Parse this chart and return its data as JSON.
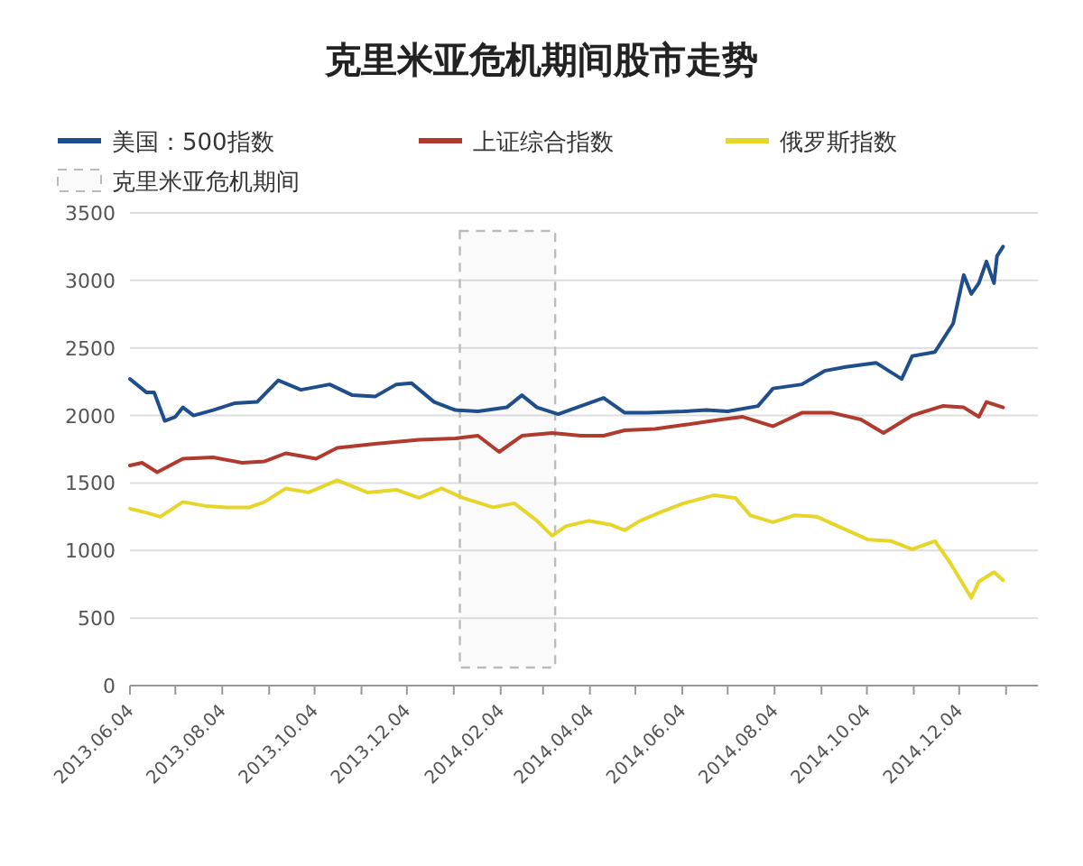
{
  "chart_data": {
    "type": "line",
    "title": "克里米亚危机期间股市走势",
    "xlim": [
      "2013-06-04",
      "2015-01-25"
    ],
    "xticks": [
      {
        "value": "2013-06-04",
        "label": "2013.06.04"
      },
      {
        "value": "2013-07-04",
        "label": null
      },
      {
        "value": "2013-08-04",
        "label": "2013.08.04"
      },
      {
        "value": "2013-09-04",
        "label": null
      },
      {
        "value": "2013-10-04",
        "label": "2013.10.04"
      },
      {
        "value": "2013-11-04",
        "label": null
      },
      {
        "value": "2013-12-04",
        "label": "2013.12.04"
      },
      {
        "value": "2014-01-04",
        "label": null
      },
      {
        "value": "2014-02-04",
        "label": "2014.02.04"
      },
      {
        "value": "2014-03-04",
        "label": null
      },
      {
        "value": "2014-04-04",
        "label": "2014.04.04"
      },
      {
        "value": "2014-05-04",
        "label": null
      },
      {
        "value": "2014-06-04",
        "label": "2014.06.04"
      },
      {
        "value": "2014-07-04",
        "label": null
      },
      {
        "value": "2014-08-04",
        "label": "2014.08.04"
      },
      {
        "value": "2014-09-04",
        "label": null
      },
      {
        "value": "2014-10-04",
        "label": "2014.10.04"
      },
      {
        "value": "2014-11-04",
        "label": null
      },
      {
        "value": "2014-12-04",
        "label": "2014.12.04"
      },
      {
        "value": "2015-01-04",
        "label": null
      }
    ],
    "ylim": [
      0,
      3500
    ],
    "yticks": [
      0,
      500,
      1000,
      1500,
      2000,
      2500,
      3000,
      3500
    ],
    "grid": "y",
    "legend": "top",
    "marker": "none",
    "line_style": "solid",
    "bands": [
      {
        "axis": "x",
        "from": "2014-01-08",
        "to": "2014-03-12",
        "label": "克里米亚危机期间",
        "color": "#bbbbbb"
      }
    ],
    "series": [
      {
        "name": "美国：500指数",
        "color": "#1f4e8c",
        "x": [
          "2013-06-04",
          "2013-06-15",
          "2013-06-20",
          "2013-06-27",
          "2013-07-04",
          "2013-07-09",
          "2013-07-16",
          "2013-07-29",
          "2013-08-12",
          "2013-08-27",
          "2013-09-10",
          "2013-09-25",
          "2013-10-14",
          "2013-10-29",
          "2013-11-13",
          "2013-11-27",
          "2013-12-07",
          "2013-12-22",
          "2014-01-05",
          "2014-01-20",
          "2014-02-08",
          "2014-02-18",
          "2014-02-28",
          "2014-03-14",
          "2014-03-29",
          "2014-04-13",
          "2014-04-27",
          "2014-05-12",
          "2014-06-05",
          "2014-06-20",
          "2014-07-04",
          "2014-07-24",
          "2014-08-03",
          "2014-08-22",
          "2014-09-06",
          "2014-09-20",
          "2014-10-10",
          "2014-10-27",
          "2014-11-03",
          "2014-11-18",
          "2014-11-30",
          "2014-12-07",
          "2014-12-12",
          "2014-12-17",
          "2014-12-22",
          "2014-12-27",
          "2014-12-29",
          "2015-01-02"
        ],
        "values": [
          2270,
          2170,
          2170,
          1960,
          1990,
          2060,
          2000,
          2040,
          2090,
          2100,
          2260,
          2190,
          2230,
          2150,
          2140,
          2230,
          2240,
          2100,
          2040,
          2030,
          2060,
          2150,
          2060,
          2010,
          2070,
          2130,
          2020,
          2020,
          2030,
          2040,
          2030,
          2070,
          2200,
          2230,
          2330,
          2360,
          2390,
          2270,
          2440,
          2470,
          2680,
          3040,
          2900,
          2980,
          3140,
          2980,
          3180,
          3250
        ]
      },
      {
        "name": "上证综合指数",
        "color": "#b03a2e",
        "x": [
          "2013-06-04",
          "2013-06-12",
          "2013-06-22",
          "2013-07-09",
          "2013-07-29",
          "2013-08-17",
          "2013-09-01",
          "2013-09-15",
          "2013-10-05",
          "2013-10-19",
          "2013-11-13",
          "2013-12-12",
          "2014-01-05",
          "2014-01-20",
          "2014-02-03",
          "2014-02-18",
          "2014-03-10",
          "2014-03-29",
          "2014-04-13",
          "2014-04-27",
          "2014-05-17",
          "2014-06-05",
          "2014-06-30",
          "2014-07-14",
          "2014-08-03",
          "2014-08-22",
          "2014-09-11",
          "2014-09-30",
          "2014-10-15",
          "2014-11-03",
          "2014-11-23",
          "2014-12-07",
          "2014-12-17",
          "2014-12-22",
          "2015-01-02"
        ],
        "values": [
          1630,
          1650,
          1580,
          1680,
          1690,
          1650,
          1660,
          1720,
          1680,
          1760,
          1790,
          1820,
          1830,
          1850,
          1730,
          1850,
          1870,
          1850,
          1850,
          1890,
          1900,
          1930,
          1970,
          1990,
          1920,
          2020,
          2020,
          1970,
          1870,
          2000,
          2070,
          2060,
          1990,
          2100,
          2060
        ]
      },
      {
        "name": "俄罗斯指数",
        "color": "#e8d52a",
        "x": [
          "2013-06-04",
          "2013-06-15",
          "2013-06-24",
          "2013-07-09",
          "2013-07-24",
          "2013-08-07",
          "2013-08-22",
          "2013-09-01",
          "2013-09-15",
          "2013-09-30",
          "2013-10-19",
          "2013-11-08",
          "2013-11-27",
          "2013-12-12",
          "2013-12-27",
          "2014-01-10",
          "2014-01-30",
          "2014-02-13",
          "2014-02-28",
          "2014-03-10",
          "2014-03-19",
          "2014-04-03",
          "2014-04-18",
          "2014-04-27",
          "2014-05-07",
          "2014-05-22",
          "2014-06-05",
          "2014-06-25",
          "2014-07-09",
          "2014-07-19",
          "2014-08-03",
          "2014-08-17",
          "2014-09-01",
          "2014-09-15",
          "2014-10-05",
          "2014-10-20",
          "2014-11-03",
          "2014-11-18",
          "2014-11-28",
          "2014-12-12",
          "2014-12-17",
          "2014-12-27",
          "2015-01-02"
        ],
        "values": [
          1310,
          1280,
          1250,
          1360,
          1330,
          1320,
          1320,
          1360,
          1460,
          1430,
          1520,
          1430,
          1450,
          1390,
          1460,
          1390,
          1320,
          1350,
          1220,
          1110,
          1180,
          1220,
          1190,
          1150,
          1220,
          1290,
          1350,
          1410,
          1390,
          1260,
          1210,
          1260,
          1250,
          1180,
          1080,
          1070,
          1010,
          1070,
          910,
          650,
          770,
          840,
          780
        ]
      }
    ]
  }
}
